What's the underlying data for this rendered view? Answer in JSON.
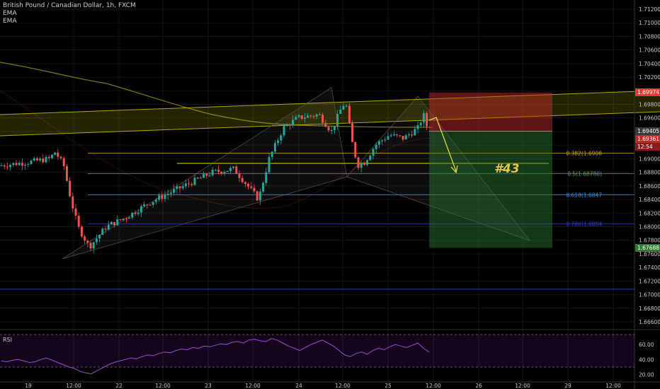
{
  "header": {
    "symbol_line": "British Pound / Canadian Dollar, 1h, FXCM",
    "indicators": [
      "EMA",
      "EMA"
    ]
  },
  "price_axis": {
    "labels": [
      "1.71200",
      "1.71000",
      "1.70800",
      "1.70600",
      "1.70400",
      "1.70200",
      "1.70000",
      "1.69800",
      "1.69600",
      "1.69400",
      "1.69200",
      "1.69000",
      "1.68800",
      "1.68600",
      "1.68400",
      "1.68200",
      "1.68000",
      "1.67800",
      "1.67600",
      "1.67400",
      "1.67200",
      "1.67000",
      "1.66800",
      "1.66600"
    ],
    "tags": [
      {
        "name": "stop-price-tag",
        "text": "1.69974",
        "color": "#e53935"
      },
      {
        "name": "current-price-tag",
        "text": "1.69405",
        "color": "#3a3a3a"
      },
      {
        "name": "last-price-tag",
        "text": "1.69361",
        "color": "#c62828"
      },
      {
        "name": "countdown-tag",
        "text": "12:54",
        "color": "#8a1c1c"
      },
      {
        "name": "target-price-tag",
        "text": "1.67688",
        "color": "#2e7d32"
      }
    ]
  },
  "time_axis": {
    "labels": [
      "12:00",
      "22",
      "12:00",
      "23",
      "12:00",
      "24",
      "12:00",
      "25",
      "12:00",
      "26",
      "12:00",
      "29",
      "12:00"
    ],
    "edge_label": "19"
  },
  "annotations": {
    "trade_number": "#43",
    "fib_levels": [
      {
        "text": "0.382(1.6908",
        "price": 1.6908,
        "color": "#c9a227"
      },
      {
        "text": "0.5(1.68780)",
        "price": 1.6878,
        "color": "#4caf50"
      },
      {
        "text": "0.618(1.6847",
        "price": 1.6847,
        "color": "#2196f3"
      },
      {
        "text": "0.786(1.6804",
        "price": 1.6804,
        "color": "#2a3fb0"
      }
    ]
  },
  "rsi": {
    "label": "RSI",
    "axis_labels": [
      "60.00",
      "40.00",
      "20.00"
    ],
    "upper": 70,
    "lower": 30
  },
  "chart_data": {
    "type": "candlestick",
    "title": "British Pound / Canadian Dollar, 1h, FXCM",
    "ylim": [
      1.6652,
      1.7122
    ],
    "levels": {
      "stop": 1.69974,
      "entry": 1.69405,
      "last": 1.69361,
      "target": 1.67688,
      "horizontal_support": 1.6708
    },
    "colors": {
      "up": "#26a69a",
      "down": "#ef5350",
      "ema": "#8a8a1a"
    },
    "rsi_series": [
      38,
      37,
      39,
      40,
      38,
      36,
      37,
      40,
      42,
      39,
      36,
      33,
      30,
      28,
      24,
      22,
      21,
      25,
      29,
      33,
      36,
      38,
      40,
      42,
      41,
      44,
      46,
      45,
      48,
      50,
      49,
      52,
      54,
      53,
      56,
      55,
      58,
      57,
      59,
      61,
      60,
      63,
      64,
      62,
      66,
      67,
      65,
      64,
      68,
      66,
      62,
      58,
      55,
      52,
      56,
      60,
      63,
      66,
      62,
      58,
      52,
      46,
      44,
      48,
      50,
      47,
      52,
      55,
      53,
      57,
      60,
      58,
      56,
      59,
      62,
      55,
      50
    ]
  }
}
